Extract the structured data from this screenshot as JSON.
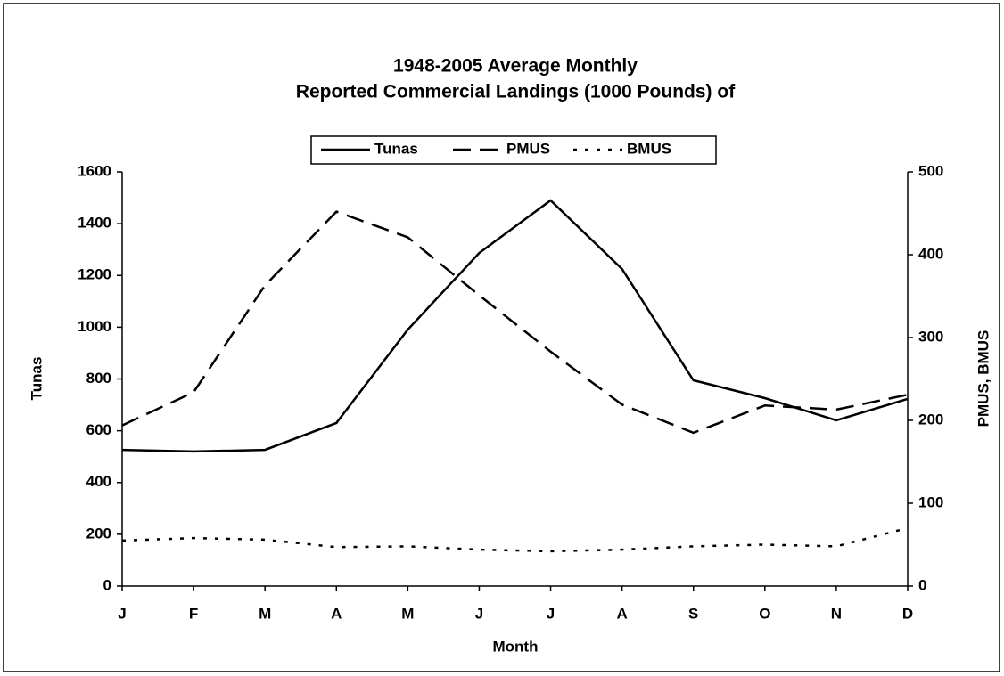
{
  "chart_data": {
    "type": "line",
    "title": [
      "1948-2005 Average Monthly",
      "Reported Commercial Landings (1000 Pounds) of"
    ],
    "categories": [
      "J",
      "F",
      "M",
      "A",
      "M",
      "J",
      "J",
      "A",
      "S",
      "O",
      "N",
      "D"
    ],
    "x_label": "Month",
    "y_label": "Tunas",
    "y2_label": "PMUS, BMUS",
    "ylim": [
      0,
      1600
    ],
    "yticks": [
      0,
      200,
      400,
      600,
      800,
      1000,
      1200,
      1400,
      1600
    ],
    "y2lim": [
      0,
      500
    ],
    "y2ticks": [
      0,
      100,
      200,
      300,
      400,
      500
    ],
    "legend": "top",
    "series": [
      {
        "name": "Tunas",
        "color": "#000000",
        "dash": "solid",
        "values": [
          526,
          520,
          526,
          630,
          991,
          1287,
          1490,
          1225,
          795,
          726,
          640,
          723
        ]
      },
      {
        "name": "PMUS",
        "color": "#000000",
        "dash": "dashed",
        "axis": "y2",
        "values": [
          194,
          234,
          363,
          452,
          421,
          351,
          283,
          219,
          185,
          218,
          213,
          231
        ]
      },
      {
        "name": "BMUS",
        "color": "#000000",
        "dash": "dotted",
        "axis": "y2",
        "values": [
          55,
          58,
          56,
          47,
          48,
          44,
          42,
          44,
          48,
          50,
          48,
          70
        ]
      }
    ]
  }
}
